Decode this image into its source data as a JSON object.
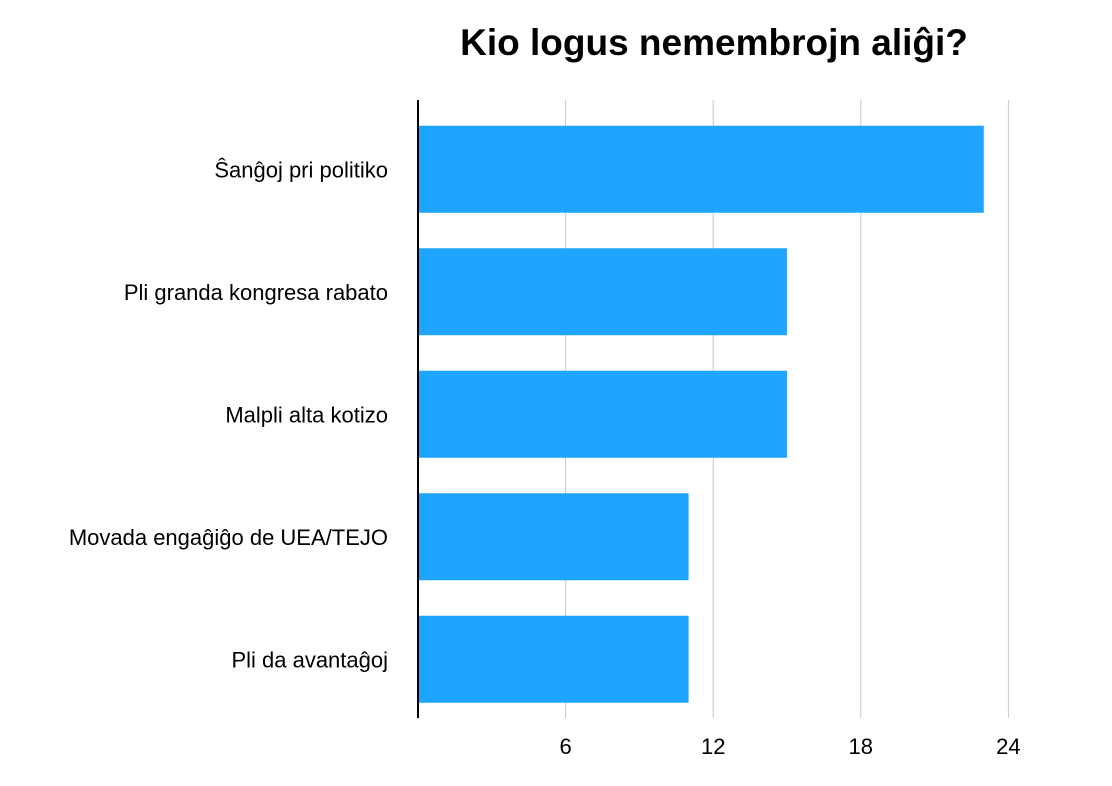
{
  "chart_data": {
    "type": "bar",
    "orientation": "horizontal",
    "title": "Kio logus nemembrojn aliĝi?",
    "xlabel": "",
    "ylabel": "",
    "categories": [
      "Ŝanĝoj pri politiko",
      "Pli granda kongresa rabato",
      "Malpli alta kotizo",
      "Movada engaĝiĝo de UEA/TEJO",
      "Pli da avantaĝoj"
    ],
    "values": [
      23,
      15,
      15,
      11,
      11
    ],
    "xlim": [
      0,
      25
    ],
    "x_ticks": [
      6,
      12,
      18,
      24
    ],
    "grid": true,
    "legend": "none",
    "colors": {
      "bar": "#1fa5ff",
      "grid": "#c8c8c8",
      "axis": "#000000"
    }
  }
}
